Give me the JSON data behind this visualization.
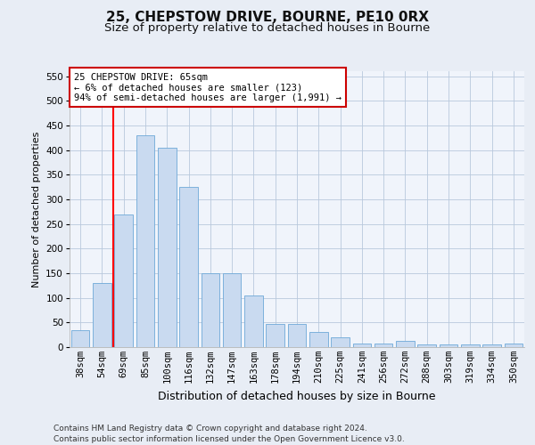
{
  "title1": "25, CHEPSTOW DRIVE, BOURNE, PE10 0RX",
  "title2": "Size of property relative to detached houses in Bourne",
  "xlabel": "Distribution of detached houses by size in Bourne",
  "ylabel": "Number of detached properties",
  "categories": [
    "38sqm",
    "54sqm",
    "69sqm",
    "85sqm",
    "100sqm",
    "116sqm",
    "132sqm",
    "147sqm",
    "163sqm",
    "178sqm",
    "194sqm",
    "210sqm",
    "225sqm",
    "241sqm",
    "256sqm",
    "272sqm",
    "288sqm",
    "303sqm",
    "319sqm",
    "334sqm",
    "350sqm"
  ],
  "values": [
    35,
    130,
    270,
    430,
    405,
    325,
    150,
    150,
    105,
    47,
    47,
    30,
    20,
    8,
    8,
    12,
    5,
    5,
    5,
    5,
    8
  ],
  "bar_color": "#c9daf0",
  "bar_edge_color": "#6ea8d8",
  "annotation_text": "25 CHEPSTOW DRIVE: 65sqm\n← 6% of detached houses are smaller (123)\n94% of semi-detached houses are larger (1,991) →",
  "annotation_box_color": "#ffffff",
  "annotation_box_edge": "#cc0000",
  "ylim": [
    0,
    560
  ],
  "yticks": [
    0,
    50,
    100,
    150,
    200,
    250,
    300,
    350,
    400,
    450,
    500,
    550
  ],
  "bg_color": "#e8edf5",
  "plot_bg_color": "#f0f4fb",
  "footer_line1": "Contains HM Land Registry data © Crown copyright and database right 2024.",
  "footer_line2": "Contains public sector information licensed under the Open Government Licence v3.0.",
  "title1_fontsize": 11,
  "title2_fontsize": 9.5,
  "xlabel_fontsize": 9,
  "ylabel_fontsize": 8,
  "tick_fontsize": 7.5,
  "footer_fontsize": 6.5,
  "red_line_x": 1.5
}
